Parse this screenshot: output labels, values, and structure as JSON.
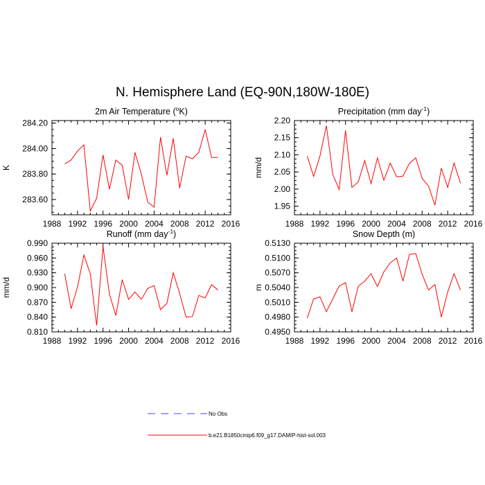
{
  "title": "N. Hemisphere Land (EQ-90N,180W-180E)",
  "legend": {
    "entries": [
      {
        "label": "No Obs",
        "color": "#4040ff",
        "style": "dashed"
      },
      {
        "label": "b.e21.B1850cmip6.f09_g17.DAMIP-hist-sol.003",
        "color": "#ff0000",
        "style": "solid"
      }
    ]
  },
  "chart_data": [
    {
      "type": "line",
      "title": "2m Air Temperature (",
      "title_sup": "o",
      "title_suffix": "K)",
      "ylabel": "K",
      "xlim": [
        1988,
        2016
      ],
      "xticks": [
        1988,
        1992,
        1996,
        2000,
        2004,
        2008,
        2012,
        2016
      ],
      "ylim": [
        283.48,
        284.22
      ],
      "yticks": [
        283.6,
        283.8,
        284.0,
        284.2
      ],
      "ytick_labels": [
        "283.60",
        "283.80",
        "284.00",
        "284.20"
      ],
      "x": [
        1990,
        1991,
        1992,
        1993,
        1994,
        1995,
        1996,
        1997,
        1998,
        1999,
        2000,
        2001,
        2002,
        2003,
        2004,
        2005,
        2006,
        2007,
        2008,
        2009,
        2010,
        2011,
        2012,
        2013,
        2014
      ],
      "series": [
        {
          "color": "#ff0000",
          "values": [
            283.88,
            283.91,
            283.98,
            284.03,
            283.51,
            283.61,
            283.95,
            283.68,
            283.91,
            283.87,
            283.6,
            283.97,
            283.8,
            283.58,
            283.54,
            284.09,
            283.79,
            284.08,
            283.69,
            283.94,
            283.92,
            283.97,
            284.15,
            283.93,
            283.93
          ]
        }
      ]
    },
    {
      "type": "line",
      "title": "Precipitation (mm day",
      "title_sup": "-1",
      "title_suffix": ")",
      "ylabel": "mm/d",
      "xlim": [
        1988,
        2016
      ],
      "xticks": [
        1988,
        1992,
        1996,
        2000,
        2004,
        2008,
        2012,
        2016
      ],
      "ylim": [
        1.925,
        2.2
      ],
      "yticks": [
        1.95,
        2.0,
        2.05,
        2.1,
        2.15,
        2.2
      ],
      "ytick_labels": [
        "1.95",
        "2.00",
        "2.05",
        "2.10",
        "2.15",
        "2.20"
      ],
      "x": [
        1990,
        1991,
        1992,
        1993,
        1994,
        1995,
        1996,
        1997,
        1998,
        1999,
        2000,
        2001,
        2002,
        2003,
        2004,
        2005,
        2006,
        2007,
        2008,
        2009,
        2010,
        2011,
        2012,
        2013,
        2014
      ],
      "series": [
        {
          "color": "#ff0000",
          "values": [
            2.096,
            2.037,
            2.097,
            2.185,
            2.043,
            1.999,
            2.171,
            2.005,
            2.021,
            2.083,
            2.016,
            2.091,
            2.026,
            2.076,
            2.036,
            2.038,
            2.075,
            2.091,
            2.031,
            2.009,
            1.953,
            2.061,
            2.005,
            2.076,
            2.017
          ]
        }
      ]
    },
    {
      "type": "line",
      "title": "Runoff (mm day",
      "title_sup": "-1",
      "title_suffix": ")",
      "ylabel": "mm/d",
      "xlim": [
        1988,
        2016
      ],
      "xticks": [
        1988,
        1992,
        1996,
        2000,
        2004,
        2008,
        2012,
        2016
      ],
      "ylim": [
        0.81,
        0.99
      ],
      "yticks": [
        0.81,
        0.84,
        0.87,
        0.9,
        0.93,
        0.96,
        0.99
      ],
      "ytick_labels": [
        "0.810",
        "0.840",
        "0.870",
        "0.900",
        "0.930",
        "0.960",
        "0.990"
      ],
      "x": [
        1990,
        1991,
        1992,
        1993,
        1994,
        1995,
        1996,
        1997,
        1998,
        1999,
        2000,
        2001,
        2002,
        2003,
        2004,
        2005,
        2006,
        2007,
        2008,
        2009,
        2010,
        2011,
        2012,
        2013,
        2014
      ],
      "series": [
        {
          "color": "#ff0000",
          "values": [
            0.928,
            0.857,
            0.901,
            0.966,
            0.928,
            0.823,
            0.983,
            0.887,
            0.843,
            0.916,
            0.876,
            0.891,
            0.876,
            0.898,
            0.904,
            0.855,
            0.868,
            0.93,
            0.888,
            0.84,
            0.841,
            0.884,
            0.879,
            0.906,
            0.895
          ]
        }
      ]
    },
    {
      "type": "line",
      "title": "Snow Depth (m)",
      "title_sup": "",
      "title_suffix": "",
      "ylabel": "m",
      "xlim": [
        1988,
        2016
      ],
      "xticks": [
        1988,
        1992,
        1996,
        2000,
        2004,
        2008,
        2012,
        2016
      ],
      "ylim": [
        0.495,
        0.513
      ],
      "yticks": [
        0.495,
        0.498,
        0.501,
        0.504,
        0.507,
        0.51,
        0.513
      ],
      "ytick_labels": [
        "0.4950",
        "0.4980",
        "0.5010",
        "0.5040",
        "0.5070",
        "0.5100",
        "0.5130"
      ],
      "x": [
        1990,
        1991,
        1992,
        1993,
        1994,
        1995,
        1996,
        1997,
        1998,
        1999,
        2000,
        2001,
        2002,
        2003,
        2004,
        2005,
        2006,
        2007,
        2008,
        2009,
        2010,
        2011,
        2012,
        2013,
        2014
      ],
      "series": [
        {
          "color": "#ff0000",
          "values": [
            0.4978,
            0.5017,
            0.5021,
            0.4991,
            0.5017,
            0.5043,
            0.505,
            0.4991,
            0.5043,
            0.5053,
            0.5068,
            0.5042,
            0.5072,
            0.509,
            0.51,
            0.5053,
            0.5107,
            0.5109,
            0.5067,
            0.5035,
            0.5046,
            0.498,
            0.5031,
            0.5068,
            0.5035
          ]
        }
      ]
    }
  ]
}
